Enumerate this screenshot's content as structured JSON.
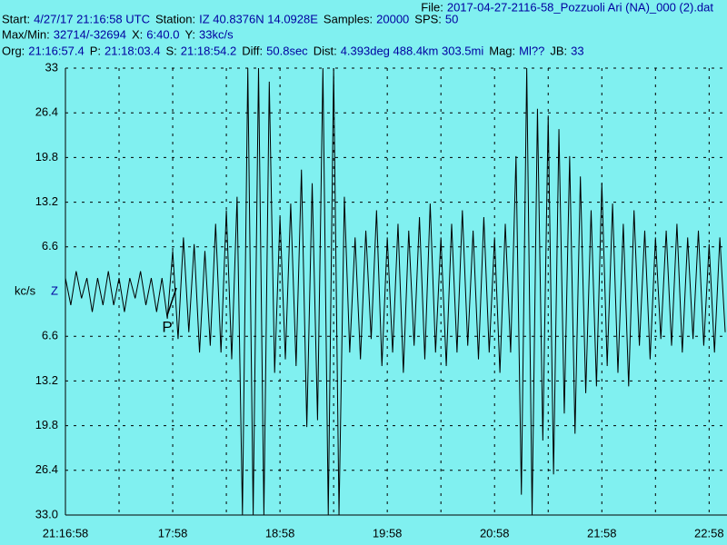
{
  "file": {
    "label": "File:",
    "value": "2017-04-27-2116-58_Pozzuoli Ari (NA)_000 (2).dat"
  },
  "header_lines": [
    [
      {
        "label": "Start:",
        "value": "4/27/17 21:16:58 UTC"
      },
      {
        "label": "Station:",
        "value": "IZ 40.8376N 14.0928E"
      },
      {
        "label": "Samples:",
        "value": "20000"
      },
      {
        "label": "SPS:",
        "value": "50"
      }
    ],
    [
      {
        "label": "Max/Min:",
        "value": "32714/-32694"
      },
      {
        "label": "X:",
        "value": "6:40.0"
      },
      {
        "label": "Y:",
        "value": "33kc/s"
      }
    ],
    [
      {
        "label": "Org:",
        "value": "21:16:57.4"
      },
      {
        "label": "P:",
        "value": "21:18:03.4"
      },
      {
        "label": "S:",
        "value": "21:18:54.2"
      },
      {
        "label": "Diff:",
        "value": "50.8sec"
      },
      {
        "label": "Dist:",
        "value": "4.393deg 488.4km 303.5mi"
      },
      {
        "label": "Mag:",
        "value": "Ml??"
      },
      {
        "label": "JB:",
        "value": "33"
      }
    ]
  ],
  "chart_data": {
    "type": "line",
    "y_label": "kc/s",
    "channel": "Z",
    "p_marker": {
      "label": "P",
      "x": 60
    },
    "xlim": [
      0,
      370
    ],
    "ylim": [
      -33,
      33
    ],
    "xticks": [
      {
        "value": 0,
        "label": "21:16:58"
      },
      {
        "value": 60,
        "label": "17:58"
      },
      {
        "value": 120,
        "label": "18:58"
      },
      {
        "value": 180,
        "label": "19:58"
      },
      {
        "value": 240,
        "label": "20:58"
      },
      {
        "value": 300,
        "label": "21:58"
      },
      {
        "value": 360,
        "label": "22:58"
      }
    ],
    "x_minor_grid": [
      30,
      90,
      150,
      210,
      270,
      330
    ],
    "yticks": [
      33.0,
      26.4,
      19.8,
      13.2,
      6.6,
      {
        "value": -6.6,
        "label": "6.6"
      },
      {
        "value": -13.2,
        "label": "13.2"
      },
      {
        "value": -19.8,
        "label": "19.8"
      },
      {
        "value": -26.4,
        "label": "26.4"
      },
      {
        "value": -33.0,
        "label": "33.0"
      }
    ],
    "grid": true,
    "series": [
      {
        "color": "#000000",
        "x": [
          0,
          3,
          6,
          9,
          12,
          15,
          18,
          21,
          24,
          27,
          30,
          33,
          36,
          39,
          42,
          45,
          48,
          51,
          54,
          57,
          60,
          63,
          66,
          69,
          72,
          75,
          78,
          81,
          84,
          87,
          90,
          93,
          96,
          99,
          102,
          105,
          108,
          111,
          114,
          117,
          120,
          123,
          126,
          129,
          132,
          135,
          138,
          141,
          144,
          147,
          150,
          153,
          156,
          159,
          162,
          165,
          168,
          171,
          174,
          177,
          180,
          183,
          186,
          189,
          192,
          195,
          198,
          201,
          204,
          207,
          210,
          213,
          216,
          219,
          222,
          225,
          228,
          231,
          234,
          237,
          240,
          243,
          246,
          249,
          252,
          255,
          258,
          261,
          264,
          267,
          270,
          273,
          276,
          279,
          282,
          285,
          288,
          291,
          294,
          297,
          300,
          303,
          306,
          309,
          312,
          315,
          318,
          321,
          324,
          327,
          330,
          333,
          336,
          339,
          342,
          345,
          348,
          351,
          354,
          357,
          360,
          363,
          366,
          369
        ],
        "values": [
          2,
          -2,
          3,
          -1,
          2,
          -3,
          2,
          -2,
          3,
          -2,
          2,
          -3,
          2,
          -1,
          3,
          -2,
          2,
          -3,
          2,
          -4,
          6,
          -7,
          8,
          -6,
          7,
          -9,
          6,
          -8,
          10,
          -9,
          12,
          -10,
          14,
          -33,
          33,
          -33,
          33,
          -33,
          31,
          -12,
          11,
          -10,
          13,
          -11,
          18,
          -20,
          16,
          -19,
          33,
          -33,
          33,
          -33,
          14,
          -9,
          8,
          -10,
          9,
          -7,
          12,
          -11,
          8,
          -9,
          10,
          -12,
          9,
          -8,
          11,
          -10,
          13,
          -9,
          8,
          -11,
          10,
          -9,
          12,
          -8,
          9,
          -10,
          11,
          -9,
          8,
          -12,
          10,
          -9,
          20,
          -30,
          33,
          -33,
          27,
          -22,
          26,
          -27,
          24,
          -18,
          20,
          -21,
          17,
          -15,
          12,
          -14,
          16,
          -11,
          13,
          -12,
          10,
          -14,
          12,
          -8,
          9,
          -10,
          8,
          -7,
          9,
          -8,
          10,
          -9,
          8,
          -7,
          9,
          -8,
          7,
          -9,
          8,
          -6
        ]
      }
    ]
  }
}
